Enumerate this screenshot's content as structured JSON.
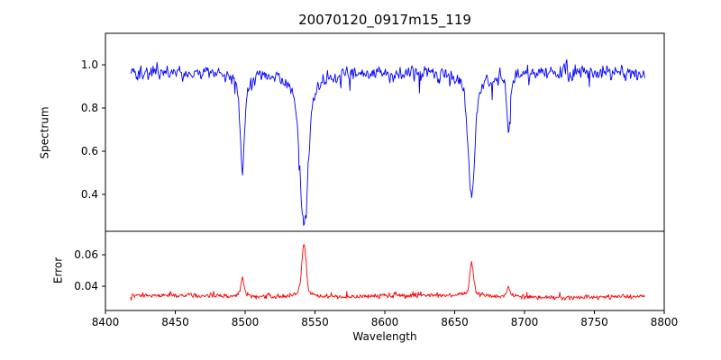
{
  "chart_data": {
    "type": "line",
    "title": "20070120_0917m15_119",
    "xlabel": "Wavelength",
    "xlim": [
      8400,
      8800
    ],
    "x_ticks": [
      "8400",
      "8450",
      "8500",
      "8550",
      "8600",
      "8650",
      "8700",
      "8750",
      "8800"
    ],
    "x_data_range": [
      8418,
      8786
    ],
    "n_points": 800,
    "seed": 20070120,
    "grid": false,
    "panels": [
      {
        "name": "spectrum",
        "ylabel": "Spectrum",
        "color": "#0000ff",
        "ylim": [
          0.229,
          1.146
        ],
        "y_ticks": [
          "1.0",
          "0.8",
          "0.6",
          "0.4"
        ],
        "y_tick_values": [
          1.0,
          0.8,
          0.6,
          0.4
        ],
        "continuum": 0.965,
        "noise_sigma": 0.02,
        "absorption_lines": [
          {
            "center": 8498.0,
            "depth": 0.47,
            "core_width": 1.4,
            "wing_width": 4.0
          },
          {
            "center": 8542.1,
            "depth": 0.69,
            "core_width": 2.8,
            "wing_width": 8.0
          },
          {
            "center": 8662.1,
            "depth": 0.59,
            "core_width": 2.2,
            "wing_width": 6.0
          },
          {
            "center": 8688.6,
            "depth": 0.24,
            "core_width": 1.2,
            "wing_width": 3.0
          }
        ]
      },
      {
        "name": "error",
        "ylabel": "Error",
        "color": "#ff0000",
        "ylim": [
          0.0246,
          0.0749
        ],
        "y_ticks": [
          "0.06",
          "0.04"
        ],
        "y_tick_values": [
          0.06,
          0.04
        ],
        "baseline": 0.0335,
        "noise_sigma": 0.0007,
        "peaks": [
          {
            "center": 8498.0,
            "height": 0.012,
            "width": 1.0
          },
          {
            "center": 8542.1,
            "height": 0.034,
            "width": 1.4
          },
          {
            "center": 8662.1,
            "height": 0.021,
            "width": 1.2
          },
          {
            "center": 8688.6,
            "height": 0.006,
            "width": 1.0
          }
        ]
      }
    ]
  }
}
